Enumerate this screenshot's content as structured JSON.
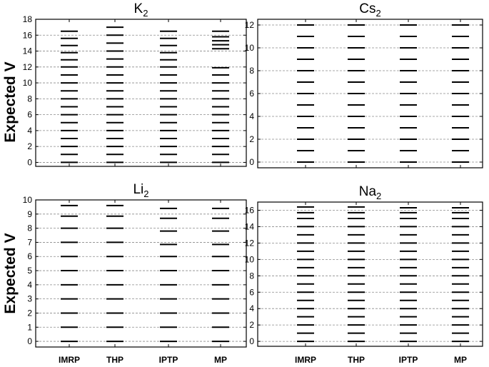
{
  "figure": {
    "ylabel": "Expected V",
    "categories": [
      "IMRP",
      "THP",
      "IPTP",
      "MP"
    ]
  },
  "chart_data": [
    {
      "type": "scatter",
      "title_main": "K",
      "title_sub": "2",
      "categories": [
        "IMRP",
        "THP",
        "IPTP",
        "MP"
      ],
      "ylabel": "Expected V",
      "ylim": [
        -0.5,
        18
      ],
      "yticks": [
        0,
        2,
        4,
        6,
        8,
        10,
        12,
        14,
        16,
        18
      ],
      "grid": true,
      "series": [
        {
          "values": [
            0,
            1,
            2,
            3,
            4,
            5,
            6,
            7,
            8,
            9,
            10,
            11,
            12,
            12.9,
            13.8,
            14.7,
            15.6,
            16.5
          ]
        },
        {
          "values": [
            0,
            1,
            2,
            3,
            4,
            5,
            6,
            7,
            8,
            9,
            10,
            11,
            12,
            13,
            14,
            15,
            16,
            17
          ]
        },
        {
          "values": [
            0,
            1,
            2,
            3,
            4,
            5,
            6,
            7,
            8,
            9,
            10,
            11,
            12,
            12.9,
            13.8,
            14.7,
            15.6,
            16.5
          ]
        },
        {
          "values": [
            0,
            1,
            2,
            3,
            4,
            5,
            6,
            7,
            8,
            9,
            10,
            11,
            11.9,
            14.3,
            14.8,
            15.3,
            15.8,
            16.5
          ]
        }
      ]
    },
    {
      "type": "scatter",
      "title_main": "Cs",
      "title_sub": "2",
      "categories": [
        "IMRP",
        "THP",
        "IPTP",
        "MP"
      ],
      "ylim": [
        -0.5,
        12.5
      ],
      "yticks": [
        0,
        2,
        4,
        6,
        8,
        10,
        12
      ],
      "grid": true,
      "series": [
        {
          "values": [
            0,
            1,
            2,
            3,
            4,
            5,
            6,
            7,
            8,
            9,
            10,
            11,
            12
          ]
        },
        {
          "values": [
            0,
            1,
            2,
            3,
            4,
            5,
            6,
            7,
            8,
            9,
            10,
            11,
            12
          ]
        },
        {
          "values": [
            0,
            1,
            2,
            3,
            4,
            5,
            6,
            7,
            8,
            9,
            10,
            11,
            12
          ]
        },
        {
          "values": [
            0,
            1,
            2,
            3,
            4,
            5,
            6,
            7,
            8,
            9,
            10,
            11,
            12
          ]
        }
      ]
    },
    {
      "type": "scatter",
      "title_main": "Li",
      "title_sub": "2",
      "categories": [
        "IMRP",
        "THP",
        "IPTP",
        "MP"
      ],
      "ylabel": "Expected V",
      "ylim": [
        -0.4,
        10
      ],
      "yticks": [
        0,
        1,
        2,
        3,
        4,
        5,
        6,
        7,
        8,
        9,
        10
      ],
      "grid": true,
      "series": [
        {
          "values": [
            0,
            1,
            2,
            3,
            4,
            5,
            6,
            7,
            8,
            8.85,
            9.6
          ]
        },
        {
          "values": [
            0,
            1,
            2,
            3,
            4,
            5,
            6,
            7,
            8,
            8.85,
            9.6
          ]
        },
        {
          "values": [
            0,
            1,
            2,
            3,
            4,
            5,
            6,
            6.85,
            7.8,
            8.7,
            9.4
          ]
        },
        {
          "values": [
            0,
            1,
            2,
            3,
            4,
            5,
            6,
            6.85,
            7.8,
            8.7,
            9.4
          ]
        }
      ]
    },
    {
      "type": "scatter",
      "title_main": "Na",
      "title_sub": "2",
      "categories": [
        "IMRP",
        "THP",
        "IPTP",
        "MP"
      ],
      "ylim": [
        -0.6,
        17
      ],
      "yticks": [
        0,
        2,
        4,
        6,
        8,
        10,
        12,
        14,
        16
      ],
      "grid": true,
      "series": [
        {
          "values": [
            0,
            1,
            2,
            3,
            4,
            5,
            6,
            7,
            8,
            9,
            10,
            11,
            12,
            13,
            14,
            15,
            15.7,
            16.4
          ]
        },
        {
          "values": [
            0,
            1,
            2,
            3,
            4,
            5,
            6,
            7,
            8,
            9,
            10,
            11,
            12,
            13,
            14,
            15,
            15.7,
            16.4
          ]
        },
        {
          "values": [
            0,
            1,
            2,
            3,
            4,
            5,
            6,
            7,
            8,
            9,
            10,
            11,
            12,
            13,
            14,
            15,
            15.7,
            16.3
          ]
        },
        {
          "values": [
            0,
            1,
            2,
            3,
            4,
            5,
            6,
            7,
            8,
            9,
            10,
            11,
            12,
            13,
            14,
            15,
            15.7,
            16.3
          ]
        }
      ]
    }
  ]
}
